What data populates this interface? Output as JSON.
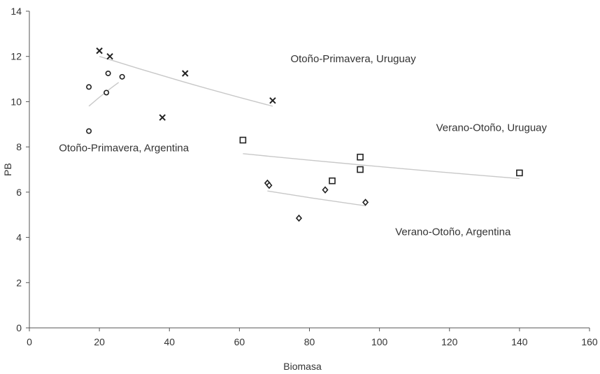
{
  "chart_data": {
    "type": "scatter",
    "title": "",
    "xlabel": "Biomasa",
    "ylabel": "PB",
    "xlim": [
      0,
      160
    ],
    "ylim": [
      0,
      14
    ],
    "xticks": [
      0,
      20,
      40,
      60,
      80,
      100,
      120,
      140,
      160
    ],
    "yticks": [
      0,
      2,
      4,
      6,
      8,
      10,
      12,
      14
    ],
    "grid": false,
    "legend": "none",
    "series": [
      {
        "key": "op_uruguay",
        "marker": "cross",
        "points": [
          [
            20,
            12.25
          ],
          [
            23,
            12.0
          ],
          [
            38,
            9.3
          ],
          [
            44.5,
            11.25
          ],
          [
            69.5,
            10.05
          ]
        ],
        "trend": [
          [
            20,
            12.0
          ],
          [
            69.5,
            9.8
          ]
        ]
      },
      {
        "key": "op_argentina",
        "marker": "circle",
        "points": [
          [
            17,
            10.65
          ],
          [
            22.5,
            11.25
          ],
          [
            22,
            10.4
          ],
          [
            26.5,
            11.1
          ],
          [
            17,
            8.7
          ]
        ],
        "trend": [
          [
            17,
            9.8
          ],
          [
            25.5,
            10.85
          ]
        ]
      },
      {
        "key": "vo_uruguay",
        "marker": "square",
        "points": [
          [
            61,
            8.3
          ],
          [
            86.5,
            6.5
          ],
          [
            94.5,
            7.55
          ],
          [
            94.5,
            7.0
          ],
          [
            140,
            6.85
          ]
        ],
        "trend": [
          [
            61,
            7.7
          ],
          [
            140,
            6.6
          ]
        ]
      },
      {
        "key": "vo_argentina",
        "marker": "diamond",
        "points": [
          [
            68,
            6.4
          ],
          [
            68.5,
            6.3
          ],
          [
            77,
            4.85
          ],
          [
            84.5,
            6.1
          ],
          [
            96,
            5.55
          ]
        ],
        "trend": [
          [
            68,
            6.05
          ],
          [
            96,
            5.4
          ]
        ]
      }
    ],
    "annotations": [
      {
        "text": "Otoño-Primavera, Uruguay",
        "x": 92.5,
        "y": 11.75
      },
      {
        "text": "Otoño-Primavera, Argentina",
        "x": 27,
        "y": 7.8
      },
      {
        "text": "Verano-Otoño, Uruguay",
        "x": 132,
        "y": 8.7
      },
      {
        "text": "Verano-Otoño, Argentina",
        "x": 121,
        "y": 4.1
      }
    ],
    "colors": {
      "axis": "#555555",
      "marker": "#222222",
      "trend": "#c8c8c8",
      "text": "#333333"
    }
  }
}
